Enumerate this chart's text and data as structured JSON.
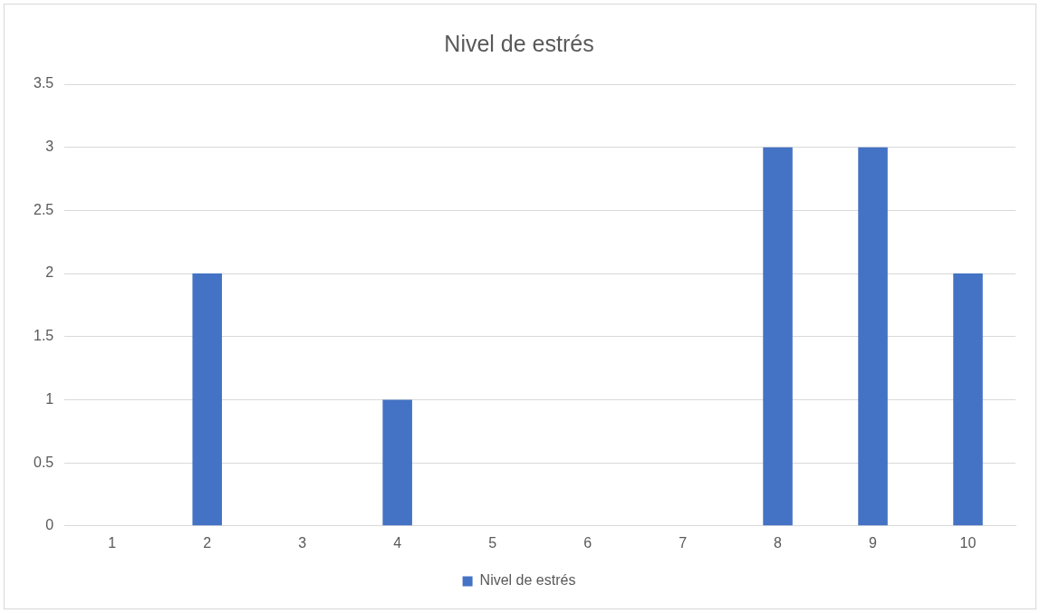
{
  "chart_data": {
    "type": "bar",
    "title": "Nivel de estrés",
    "categories": [
      "1",
      "2",
      "3",
      "4",
      "5",
      "6",
      "7",
      "8",
      "9",
      "10"
    ],
    "series": [
      {
        "name": "Nivel de estrés",
        "color": "#4472c4",
        "values": [
          0,
          2,
          0,
          1,
          0,
          0,
          0,
          3,
          3,
          2
        ]
      }
    ],
    "ylim": [
      0,
      3.5
    ],
    "yticks": [
      0,
      0.5,
      1,
      1.5,
      2,
      2.5,
      3,
      3.5
    ],
    "grid": "y",
    "legend": "bottom"
  }
}
